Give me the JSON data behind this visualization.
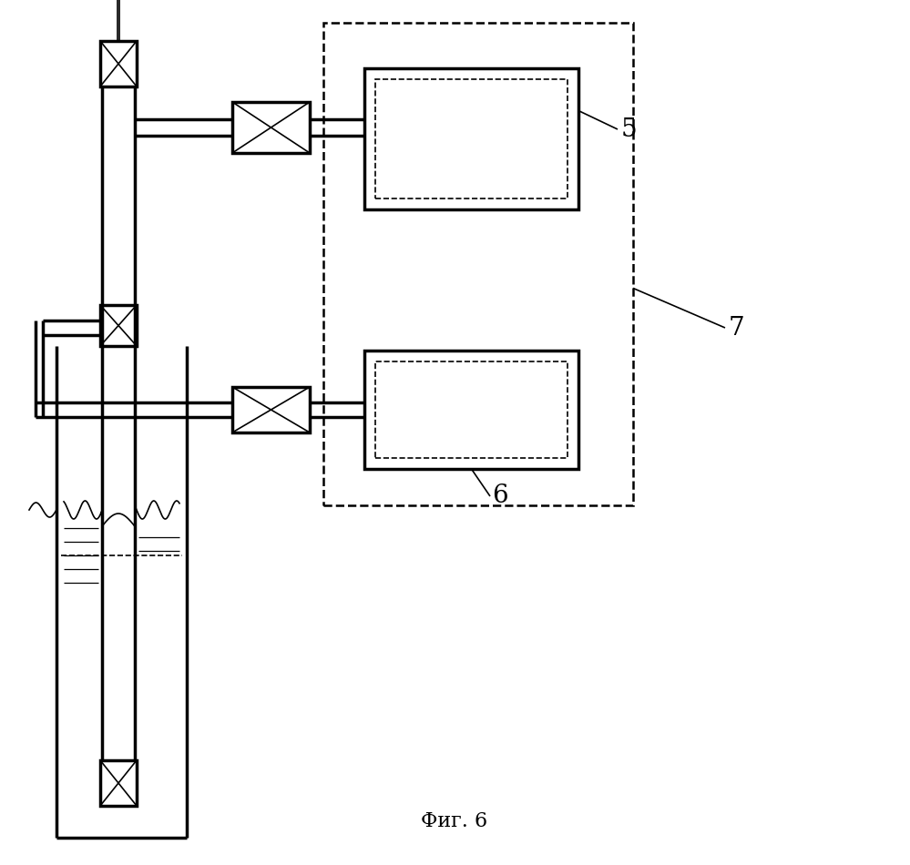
{
  "bg_color": "#ffffff",
  "line_color": "#000000",
  "fig_caption": "Фиг. 6",
  "label_5": "5",
  "label_6": "6",
  "label_7": "7"
}
